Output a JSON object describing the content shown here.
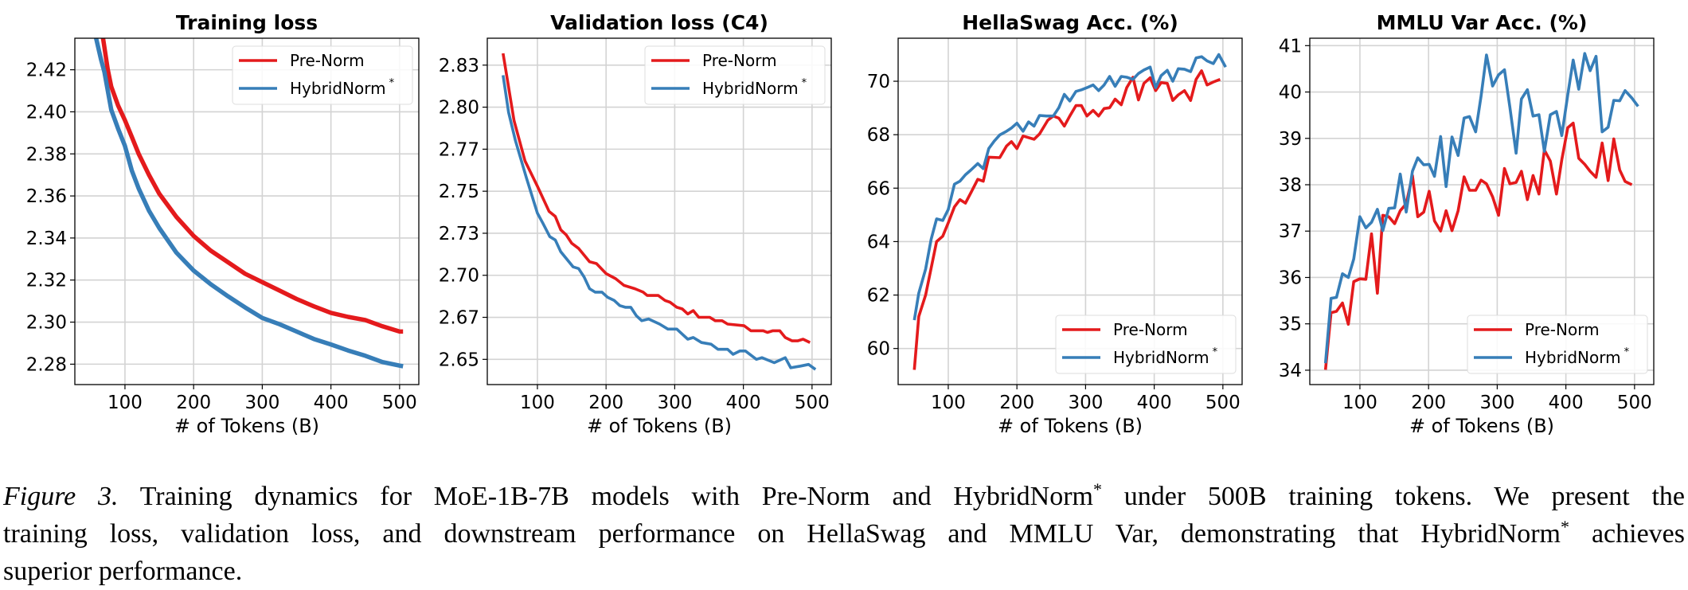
{
  "chart_data": [
    {
      "type": "line",
      "title": "Training loss",
      "xlabel": "# of Tokens (B)",
      "ylabel": "",
      "xlim": [
        27,
        528
      ],
      "ylim": [
        2.2703,
        2.435
      ],
      "grid": true,
      "legend_position": "top-right",
      "xticks": [
        100,
        200,
        300,
        400,
        500
      ],
      "xtick_labels": [
        "100",
        "200",
        "300",
        "400",
        "500"
      ],
      "yticks": [
        2.28,
        2.3,
        2.32,
        2.34,
        2.36,
        2.38,
        2.4,
        2.42
      ],
      "ytick_labels": [
        "2.28",
        "2.30",
        "2.32",
        "2.34",
        "2.36",
        "2.38",
        "2.40",
        "2.42"
      ],
      "series": [
        {
          "name": "Pre-Norm",
          "sup": "",
          "color": "#e41a1c",
          "x": [
            68,
            75,
            80,
            90,
            100,
            110,
            120,
            135,
            150,
            175,
            200,
            225,
            250,
            275,
            300,
            325,
            350,
            375,
            400,
            425,
            450,
            475,
            500,
            505
          ],
          "y": [
            2.435,
            2.42,
            2.412,
            2.403,
            2.396,
            2.388,
            2.38,
            2.37,
            2.361,
            2.35,
            2.341,
            2.334,
            2.3285,
            2.323,
            2.319,
            2.315,
            2.311,
            2.3075,
            2.3044,
            2.3025,
            2.301,
            2.298,
            2.2955,
            2.2955
          ]
        },
        {
          "name": "HybridNorm",
          "sup": "*",
          "color": "#377eb8",
          "x": [
            58,
            65,
            70,
            80,
            90,
            100,
            110,
            120,
            135,
            150,
            175,
            200,
            225,
            250,
            275,
            300,
            325,
            350,
            375,
            400,
            425,
            450,
            475,
            500,
            505
          ],
          "y": [
            2.435,
            2.425,
            2.419,
            2.401,
            2.392,
            2.3838,
            2.372,
            2.3635,
            2.353,
            2.3447,
            2.333,
            2.3245,
            2.318,
            2.3123,
            2.307,
            2.302,
            2.299,
            2.2955,
            2.292,
            2.2894,
            2.2865,
            2.284,
            2.281,
            2.2793,
            2.279
          ]
        }
      ]
    },
    {
      "type": "line",
      "title": "Validation loss (C4)",
      "xlabel": "# of Tokens (B)",
      "ylabel": "",
      "xlim": [
        27,
        528
      ],
      "ylim": [
        2.635,
        2.841
      ],
      "grid": true,
      "legend_position": "top-right",
      "xticks": [
        100,
        200,
        300,
        400,
        500
      ],
      "xtick_labels": [
        "100",
        "200",
        "300",
        "400",
        "500"
      ],
      "yticks": [
        2.65,
        2.675,
        2.7,
        2.725,
        2.75,
        2.775,
        2.8,
        2.825
      ],
      "ytick_labels": [
        "2.65",
        "2.67",
        "2.70",
        "2.73",
        "2.75",
        "2.77",
        "2.80",
        "2.83"
      ],
      "series": [
        {
          "name": "Pre-Norm",
          "sup": "",
          "color": "#e41a1c",
          "x": [
            50,
            66,
            82,
            100,
            117,
            126,
            134,
            142,
            150,
            160,
            176,
            186,
            200,
            214,
            226,
            242,
            254,
            260,
            276,
            286,
            293,
            303,
            311,
            319,
            327,
            335,
            351,
            359,
            369,
            377,
            401,
            411,
            429,
            435,
            443,
            453,
            461,
            471,
            479,
            487,
            497
          ],
          "y": [
            2.832,
            2.792,
            2.768,
            2.753,
            2.738,
            2.735,
            2.727,
            2.724,
            2.719,
            2.716,
            2.708,
            2.707,
            2.701,
            2.698,
            2.694,
            2.692,
            2.69,
            2.688,
            2.688,
            2.685,
            2.684,
            2.681,
            2.68,
            2.677,
            2.679,
            2.675,
            2.675,
            2.673,
            2.673,
            2.671,
            2.67,
            2.667,
            2.667,
            2.666,
            2.667,
            2.667,
            2.663,
            2.661,
            2.661,
            2.662,
            2.66
          ]
        },
        {
          "name": "HybridNorm",
          "sup": "*",
          "color": "#377eb8",
          "x": [
            50,
            58,
            68,
            84,
            100,
            108,
            118,
            126,
            134,
            152,
            160,
            168,
            176,
            184,
            194,
            202,
            212,
            220,
            228,
            236,
            244,
            252,
            262,
            278,
            290,
            303,
            311,
            319,
            327,
            339,
            353,
            363,
            377,
            385,
            395,
            403,
            419,
            427,
            445,
            461,
            469,
            483,
            495,
            505
          ],
          "y": [
            2.819,
            2.797,
            2.78,
            2.758,
            2.737,
            2.731,
            2.723,
            2.721,
            2.714,
            2.705,
            2.704,
            2.699,
            2.692,
            2.69,
            2.69,
            2.687,
            2.685,
            2.682,
            2.681,
            2.681,
            2.676,
            2.673,
            2.674,
            2.671,
            2.668,
            2.668,
            2.665,
            2.662,
            2.663,
            2.66,
            2.659,
            2.656,
            2.656,
            2.653,
            2.655,
            2.655,
            2.65,
            2.651,
            2.648,
            2.651,
            2.645,
            2.646,
            2.647,
            2.644
          ]
        }
      ]
    },
    {
      "type": "line",
      "title": "HellaSwag Acc. (%)",
      "xlabel": "# of Tokens (B)",
      "ylabel": "",
      "xlim": [
        27,
        528
      ],
      "ylim": [
        58.65,
        71.61
      ],
      "grid": true,
      "legend_position": "bottom-right",
      "xticks": [
        100,
        200,
        300,
        400,
        500
      ],
      "xtick_labels": [
        "100",
        "200",
        "300",
        "400",
        "500"
      ],
      "yticks": [
        60,
        62,
        64,
        66,
        68,
        70
      ],
      "ytick_labels": [
        "60",
        "62",
        "64",
        "66",
        "68",
        "70"
      ],
      "series": [
        {
          "name": "Pre-Norm",
          "sup": "",
          "color": "#e41a1c",
          "x": [
            50.6,
            57,
            67,
            75,
            83,
            92,
            100,
            109,
            117,
            125,
            133,
            143,
            151,
            159,
            175,
            185,
            192,
            200,
            209,
            225,
            233,
            245,
            253,
            261,
            269,
            277,
            286,
            294,
            302,
            311,
            319,
            327,
            335,
            343,
            352,
            360,
            369,
            377,
            385,
            394,
            402,
            410,
            419,
            427,
            435,
            444,
            453,
            461,
            469,
            477,
            486,
            496
          ],
          "y": [
            59.2,
            61.2,
            62.0,
            63.0,
            64.0,
            64.2,
            64.7,
            65.3,
            65.57,
            65.44,
            65.83,
            66.33,
            66.26,
            67.16,
            67.14,
            67.58,
            67.74,
            67.48,
            67.95,
            67.83,
            68.03,
            68.54,
            68.7,
            68.62,
            68.32,
            68.7,
            69.09,
            69.09,
            68.7,
            68.91,
            68.7,
            68.98,
            69.01,
            69.33,
            69.12,
            69.76,
            70.15,
            69.3,
            69.92,
            70.13,
            69.65,
            69.95,
            69.92,
            69.28,
            69.49,
            69.65,
            69.28,
            70.07,
            70.39,
            69.86,
            69.97,
            70.07
          ]
        },
        {
          "name": "HybridNorm",
          "sup": "*",
          "color": "#377eb8",
          "x": [
            50.6,
            57,
            67,
            75,
            83,
            92,
            100,
            109,
            117,
            125,
            133,
            143,
            151,
            159,
            167,
            175,
            185,
            192,
            200,
            209,
            217,
            225,
            233,
            243,
            253,
            261,
            269,
            277,
            286,
            294,
            302,
            311,
            319,
            327,
            335,
            343,
            352,
            360,
            369,
            377,
            385,
            394,
            402,
            410,
            419,
            427,
            435,
            444,
            453,
            461,
            469,
            477,
            486,
            494,
            504
          ],
          "y": [
            61.06,
            62.07,
            62.97,
            64.08,
            64.85,
            64.79,
            65.2,
            66.15,
            66.26,
            66.5,
            66.68,
            66.92,
            66.73,
            67.48,
            67.76,
            67.99,
            68.13,
            68.25,
            68.43,
            68.13,
            68.48,
            68.32,
            68.72,
            68.7,
            68.7,
            69.01,
            69.51,
            69.26,
            69.62,
            69.68,
            69.76,
            69.86,
            69.65,
            69.86,
            70.18,
            69.81,
            70.18,
            70.15,
            70.07,
            70.29,
            70.42,
            70.53,
            69.76,
            70.21,
            70.41,
            70.0,
            70.47,
            70.45,
            70.36,
            70.87,
            70.92,
            70.76,
            70.66,
            71.0,
            70.53
          ]
        }
      ]
    },
    {
      "type": "line",
      "title": "MMLU Var Acc. (%)",
      "xlabel": "# of Tokens (B)",
      "ylabel": "",
      "xlim": [
        27,
        528
      ],
      "ylim": [
        33.69,
        41.16
      ],
      "grid": true,
      "legend_position": "bottom-right",
      "xticks": [
        100,
        200,
        300,
        400,
        500
      ],
      "xtick_labels": [
        "100",
        "200",
        "300",
        "400",
        "500"
      ],
      "yticks": [
        34,
        35,
        36,
        37,
        38,
        39,
        40,
        41
      ],
      "ytick_labels": [
        "34",
        "35",
        "36",
        "37",
        "38",
        "39",
        "40",
        "41"
      ],
      "series": [
        {
          "name": "Pre-Norm",
          "sup": "",
          "color": "#e41a1c",
          "x": [
            49.8,
            58,
            65.9,
            74.5,
            83.1,
            91,
            100,
            108.6,
            116.9,
            125.5,
            133.3,
            142,
            150.6,
            158.8,
            167.5,
            176.5,
            184.3,
            192.9,
            200.8,
            208.6,
            217.6,
            225.5,
            234.1,
            243.1,
            251.8,
            259.6,
            268.6,
            276.5,
            284.3,
            293.3,
            302,
            310.6,
            318.4,
            327.5,
            335.3,
            343.9,
            352.2,
            360.8,
            368.6,
            377.3,
            386.3,
            394.1,
            402.7,
            410.6,
            418.8,
            427.5,
            435.3,
            443.9,
            452.9,
            461.6,
            469.8,
            478.4,
            486.3,
            496.1
          ],
          "y": [
            34.01,
            35.24,
            35.27,
            35.45,
            34.99,
            35.91,
            35.97,
            35.96,
            36.94,
            35.66,
            37.34,
            37.31,
            37.16,
            37.44,
            37.59,
            38.2,
            37.31,
            37.41,
            37.86,
            37.22,
            37.0,
            37.44,
            37.01,
            37.44,
            38.17,
            37.88,
            37.88,
            38.1,
            38.02,
            37.74,
            37.34,
            38.35,
            38.02,
            38.05,
            38.29,
            37.68,
            38.2,
            37.8,
            38.75,
            38.51,
            37.8,
            38.54,
            39.23,
            39.33,
            38.57,
            38.44,
            38.29,
            38.16,
            38.9,
            38.09,
            38.99,
            38.32,
            38.07,
            38.0
          ]
        },
        {
          "name": "HybridNorm",
          "sup": "*",
          "color": "#377eb8",
          "x": [
            49.8,
            58,
            65.9,
            74.5,
            83.1,
            91,
            100,
            108.6,
            116.9,
            125.5,
            133.3,
            142,
            150.6,
            158.8,
            167.5,
            176.5,
            184.3,
            192.9,
            200.8,
            208.6,
            217.6,
            225.5,
            234.1,
            243.1,
            251.8,
            259.6,
            268.6,
            276.5,
            284.3,
            293.3,
            302,
            310.6,
            318.4,
            327.5,
            335.3,
            343.9,
            352.2,
            360.8,
            368.6,
            377.3,
            386.3,
            394.1,
            402.7,
            410.6,
            418.8,
            427.5,
            435.3,
            443.9,
            452.9,
            461.6,
            469.8,
            478.4,
            486.3,
            496.1,
            505.1
          ],
          "y": [
            34.15,
            35.55,
            35.57,
            36.08,
            36.0,
            36.4,
            37.31,
            37.07,
            37.19,
            37.47,
            37.01,
            37.49,
            37.5,
            38.23,
            37.41,
            38.29,
            38.58,
            38.43,
            38.44,
            38.18,
            39.04,
            37.96,
            39.03,
            38.63,
            39.44,
            39.47,
            39.14,
            39.91,
            40.8,
            40.13,
            40.37,
            40.48,
            39.67,
            38.68,
            39.85,
            40.05,
            39.48,
            39.51,
            38.72,
            39.51,
            39.58,
            39.06,
            39.94,
            40.69,
            40.06,
            40.83,
            40.46,
            40.77,
            39.14,
            39.24,
            39.82,
            39.81,
            40.03,
            39.87,
            39.69
          ]
        }
      ]
    }
  ],
  "caption": {
    "label": "Figure 3.",
    "line1_a": " Training dynamics for MoE-1B-7B models with Pre-Norm and HybridNorm",
    "line1_sup": "*",
    "line1_b": " under 500B training tokens.  We present the",
    "line2_a": "training loss, validation loss, and downstream performance on HellaSwag and MMLU Var, demonstrating that HybridNorm",
    "line2_sup": "*",
    "line2_b": " achieves",
    "line3": "superior performance."
  }
}
